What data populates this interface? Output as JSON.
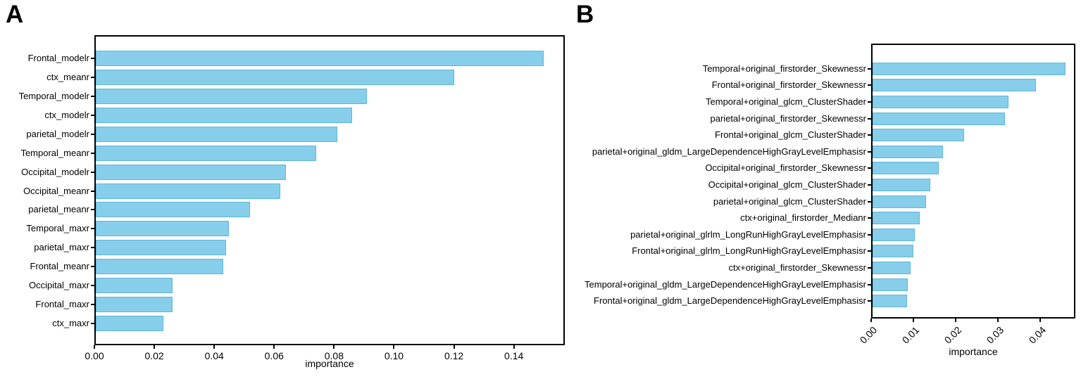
{
  "figure": {
    "background": "#ffffff",
    "panel_labels": [
      "A",
      "B"
    ]
  },
  "chart_data": [
    {
      "panel_label": "A",
      "type": "bar",
      "orientation": "horizontal",
      "title": "",
      "xlabel": "importance",
      "ylabel": "",
      "grid": false,
      "legend": null,
      "bar_color": "#87CEEB",
      "bar_edge_color": "#5FB6DA",
      "xlim": [
        0,
        0.157
      ],
      "xticks": [
        0,
        0.02,
        0.04,
        0.06,
        0.08,
        0.1,
        0.12,
        0.14
      ],
      "xtick_labels": [
        "0.00",
        "0.02",
        "0.04",
        "0.06",
        "0.08",
        "0.10",
        "0.12",
        "0.14"
      ],
      "xtick_rotation": 0,
      "categories": [
        "Frontal_modelr",
        "ctx_meanr",
        "Temporal_modelr",
        "ctx_modelr",
        "parietal_modelr",
        "Temporal_meanr",
        "Occipital_modelr",
        "Occipital_meanr",
        "parietal_meanr",
        "Temporal_maxr",
        "parietal_maxr",
        "Frontal_meanr",
        "Occipital_maxr",
        "Frontal_maxr",
        "ctx_maxr"
      ],
      "values": [
        0.15,
        0.12,
        0.091,
        0.086,
        0.081,
        0.074,
        0.064,
        0.062,
        0.052,
        0.045,
        0.044,
        0.043,
        0.026,
        0.026,
        0.023
      ]
    },
    {
      "panel_label": "B",
      "type": "bar",
      "orientation": "horizontal",
      "title": "",
      "xlabel": "importance",
      "ylabel": "",
      "grid": false,
      "legend": null,
      "bar_color": "#87CEEB",
      "bar_edge_color": "#5FB6DA",
      "xlim": [
        0,
        0.0483
      ],
      "xticks": [
        0,
        0.01,
        0.02,
        0.03,
        0.04
      ],
      "xtick_labels": [
        "0.00",
        "0.01",
        "0.02",
        "0.03",
        "0.04"
      ],
      "xtick_rotation": 45,
      "categories": [
        "Temporal+original_firstorder_Skewnessr",
        "Frontal+original_firstorder_Skewnessr",
        "Temporal+original_glcm_ClusterShader",
        "parietal+original_firstorder_Skewnessr",
        "Frontal+original_glcm_ClusterShader",
        "parietal+original_gldm_LargeDependenceHighGrayLevelEmphasisr",
        "Occipital+original_firstorder_Skewnessr",
        "Occipital+original_glcm_ClusterShader",
        "parietal+original_glcm_ClusterShader",
        "ctx+original_firstorder_Medianr",
        "parietal+original_glrlm_LongRunHighGrayLevelEmphasisr",
        "Frontal+original_glrlm_LongRunHighGrayLevelEmphasisr",
        "ctx+original_firstorder_Skewnessr",
        "Temporal+original_gldm_LargeDependenceHighGrayLevelEmphasisr",
        "Frontal+original_gldm_LargeDependenceHighGrayLevelEmphasisr"
      ],
      "values": [
        0.046,
        0.039,
        0.0325,
        0.0316,
        0.022,
        0.017,
        0.016,
        0.014,
        0.013,
        0.0115,
        0.0104,
        0.01,
        0.0094,
        0.0087,
        0.0085
      ]
    }
  ]
}
